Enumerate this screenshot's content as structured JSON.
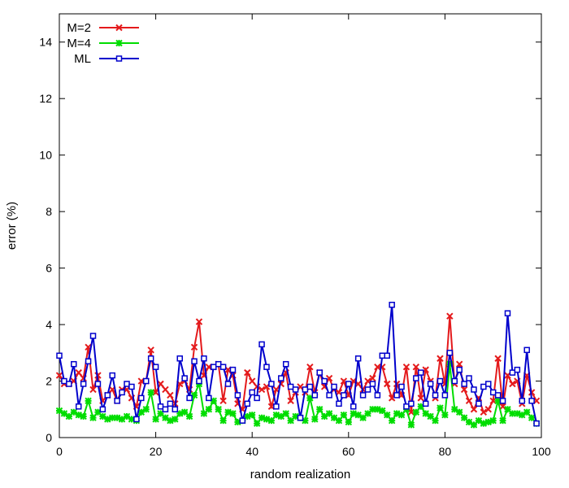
{
  "chart_data": {
    "type": "line",
    "title": "",
    "xlabel": "random realization",
    "ylabel": "error (%)",
    "xlim": [
      0,
      100
    ],
    "ylim": [
      0,
      15
    ],
    "xticks": [
      "0",
      "20",
      "40",
      "60",
      "80",
      "100"
    ],
    "yticks": [
      "0",
      "2",
      "4",
      "6",
      "8",
      "10",
      "12",
      "14"
    ],
    "grid": false,
    "legend_position": "top-left",
    "x": [
      0,
      1,
      2,
      3,
      4,
      5,
      6,
      7,
      8,
      9,
      10,
      11,
      12,
      13,
      14,
      15,
      16,
      17,
      18,
      19,
      20,
      21,
      22,
      23,
      24,
      25,
      26,
      27,
      28,
      29,
      30,
      31,
      32,
      33,
      34,
      35,
      36,
      37,
      38,
      39,
      40,
      41,
      42,
      43,
      44,
      45,
      46,
      47,
      48,
      49,
      50,
      51,
      52,
      53,
      54,
      55,
      56,
      57,
      58,
      59,
      60,
      61,
      62,
      63,
      64,
      65,
      66,
      67,
      68,
      69,
      70,
      71,
      72,
      73,
      74,
      75,
      76,
      77,
      78,
      79,
      80,
      81,
      82,
      83,
      84,
      85,
      86,
      87,
      88,
      89,
      90,
      91,
      92,
      93,
      94,
      95,
      96,
      97,
      98,
      99
    ],
    "series": [
      {
        "name": "M=2",
        "color": "#e41a1c",
        "marker": "x",
        "values": [
          2.2,
          1.9,
          1.9,
          2.0,
          2.3,
          2.1,
          3.2,
          1.7,
          2.2,
          1.3,
          1.5,
          1.7,
          1.3,
          1.7,
          1.7,
          1.4,
          1.1,
          2.0,
          2.0,
          3.1,
          1.6,
          1.9,
          1.7,
          1.5,
          1.2,
          1.9,
          2.0,
          1.7,
          3.2,
          4.1,
          2.2,
          2.5,
          2.5,
          2.6,
          1.3,
          2.4,
          2.2,
          1.2,
          1.0,
          2.3,
          2.0,
          1.8,
          1.7,
          1.8,
          1.1,
          1.7,
          1.9,
          2.3,
          1.3,
          1.6,
          1.8,
          1.6,
          2.5,
          1.6,
          2.3,
          1.8,
          2.1,
          1.7,
          1.6,
          2.0,
          1.5,
          2.0,
          1.9,
          1.7,
          2.0,
          2.1,
          2.5,
          2.5,
          1.9,
          1.4,
          1.9,
          1.5,
          2.5,
          0.9,
          2.5,
          1.4,
          2.4,
          2.0,
          1.4,
          2.8,
          1.9,
          4.3,
          1.9,
          2.6,
          1.7,
          1.3,
          1.0,
          1.4,
          0.9,
          1.0,
          1.3,
          2.8,
          1.1,
          2.2,
          1.9,
          2.0,
          1.2,
          2.2,
          1.6,
          1.3
        ]
      },
      {
        "name": "M=4",
        "color": "#00dd00",
        "marker": "*",
        "values": [
          0.95,
          0.85,
          0.75,
          0.9,
          0.8,
          0.75,
          1.3,
          0.7,
          0.9,
          0.75,
          0.65,
          0.7,
          0.7,
          0.65,
          0.75,
          0.65,
          0.6,
          0.9,
          1.0,
          1.6,
          0.65,
          0.85,
          0.7,
          0.6,
          0.65,
          0.85,
          0.9,
          0.75,
          1.5,
          1.9,
          0.85,
          1.0,
          1.3,
          1.0,
          0.6,
          0.9,
          0.85,
          0.55,
          0.6,
          0.75,
          0.8,
          0.5,
          0.7,
          0.65,
          0.6,
          0.8,
          0.75,
          0.85,
          0.6,
          0.75,
          0.7,
          0.6,
          1.4,
          0.65,
          1.0,
          0.75,
          0.85,
          0.7,
          0.6,
          0.8,
          0.55,
          0.85,
          0.8,
          0.7,
          0.85,
          1.0,
          1.0,
          0.95,
          0.8,
          0.6,
          0.85,
          0.8,
          1.0,
          0.45,
          0.9,
          1.1,
          0.85,
          0.75,
          0.6,
          1.05,
          0.8,
          2.6,
          1.0,
          0.9,
          0.7,
          0.55,
          0.45,
          0.6,
          0.5,
          0.55,
          0.6,
          1.3,
          0.6,
          1.0,
          0.85,
          0.85,
          0.8,
          0.9,
          0.7,
          0.5
        ]
      },
      {
        "name": "ML",
        "color": "#0000cc",
        "marker": "square",
        "values": [
          2.9,
          2.0,
          1.9,
          2.6,
          1.1,
          1.9,
          2.7,
          3.6,
          1.9,
          1.0,
          1.5,
          2.2,
          1.3,
          1.6,
          1.9,
          1.8,
          0.65,
          1.4,
          2.0,
          2.8,
          2.5,
          1.1,
          1.0,
          1.2,
          1.0,
          2.8,
          2.1,
          1.4,
          2.7,
          2.0,
          2.8,
          1.4,
          2.5,
          2.6,
          2.5,
          1.9,
          2.4,
          1.5,
          0.6,
          1.2,
          1.6,
          1.4,
          3.3,
          2.5,
          1.9,
          1.1,
          2.1,
          2.6,
          1.8,
          1.7,
          0.7,
          1.7,
          1.8,
          1.5,
          2.3,
          2.0,
          1.5,
          1.8,
          1.2,
          1.5,
          1.9,
          1.1,
          2.8,
          1.5,
          1.7,
          1.9,
          1.5,
          2.9,
          2.9,
          4.7,
          1.5,
          1.8,
          1.1,
          1.2,
          2.1,
          2.3,
          1.2,
          1.9,
          1.5,
          2.0,
          1.5,
          3.0,
          2.0,
          2.4,
          1.9,
          2.1,
          1.7,
          1.2,
          1.8,
          1.9,
          1.6,
          1.5,
          1.3,
          4.4,
          2.3,
          2.4,
          1.3,
          3.1,
          1.3,
          0.5
        ]
      }
    ]
  }
}
